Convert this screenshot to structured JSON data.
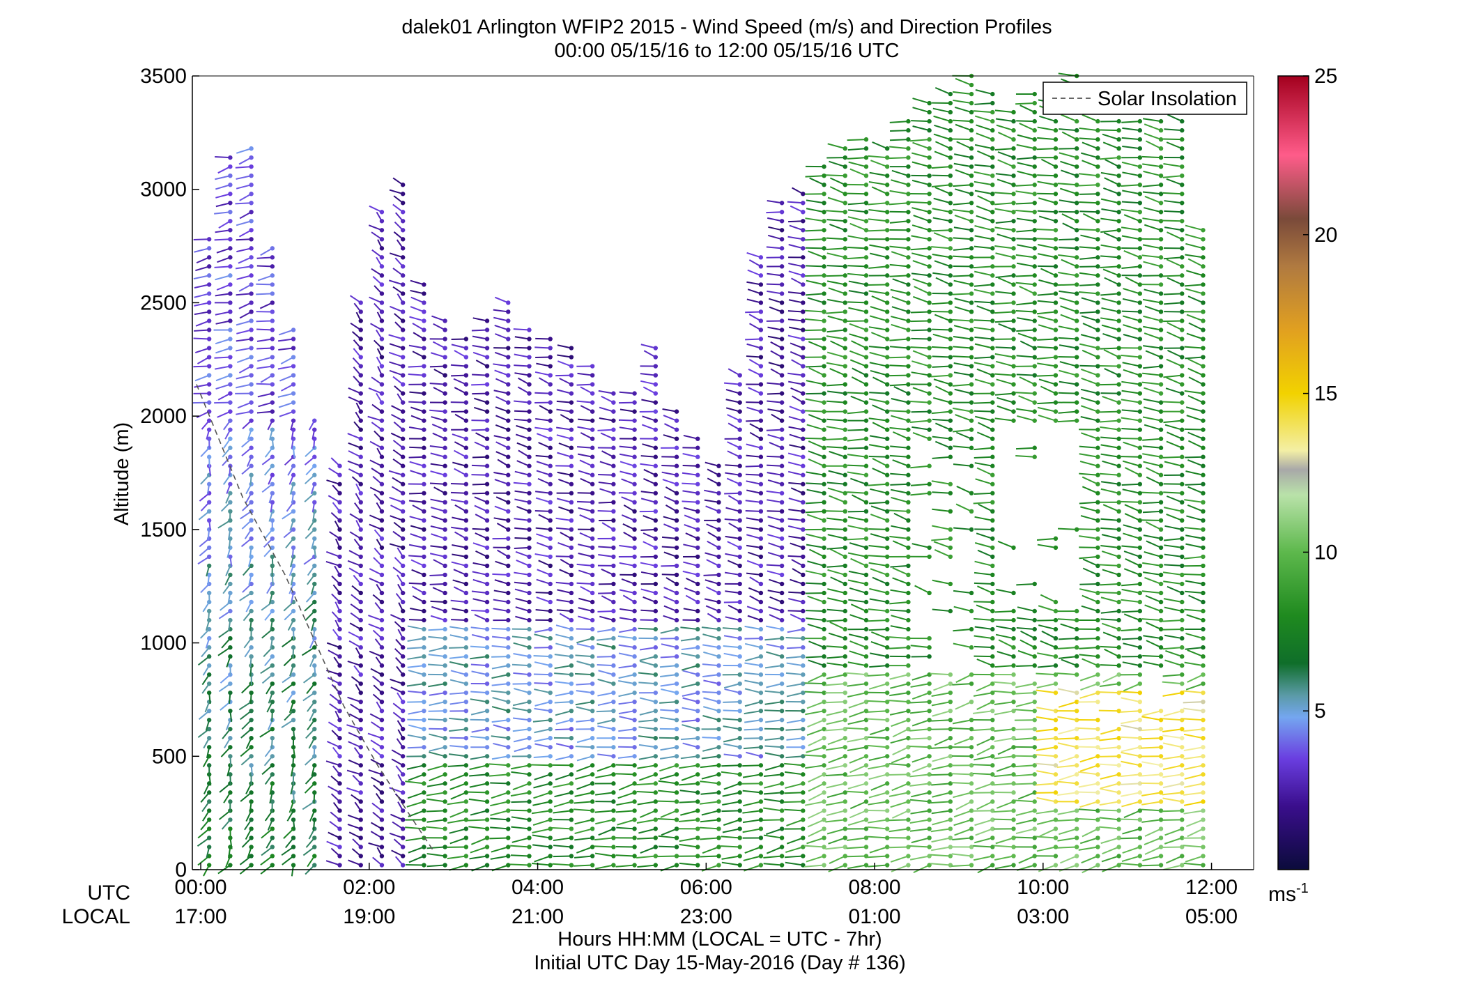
{
  "chart_data": {
    "type": "wind-barb-profile",
    "title_lines": [
      "dalek01 Arlington WFIP2 2015 - Wind Speed (m/s) and Direction Profiles",
      "00:00 05/15/16 to 12:00 05/15/16  UTC"
    ],
    "ylabel": "Altitude (m)",
    "ylim": [
      0,
      3500
    ],
    "y_ticks": [
      0,
      500,
      1000,
      1500,
      2000,
      2500,
      3000,
      3500
    ],
    "y_tick_labels": [
      "0",
      "500",
      "1000",
      "1500",
      "2000",
      "2500",
      "3000",
      "3500"
    ],
    "xlim": [
      -0.1,
      12.5
    ],
    "x_tick_hours": [
      0,
      2,
      4,
      6,
      8,
      10,
      12
    ],
    "x_tick_utc": [
      "00:00",
      "02:00",
      "04:00",
      "06:00",
      "08:00",
      "10:00",
      "12:00"
    ],
    "x_tick_local": [
      "17:00",
      "19:00",
      "21:00",
      "23:00",
      "01:00",
      "03:00",
      "05:00"
    ],
    "row_label_utc": "UTC",
    "row_label_local": "LOCAL",
    "xlabel_lines": [
      "Hours HH:MM  (LOCAL = UTC - 7hr)",
      "Initial UTC Day 15-May-2016 (Day # 136)"
    ],
    "legend": {
      "entry": "Solar Insolation",
      "style": "dashed",
      "placement": "top-right"
    },
    "colorbar": {
      "range": [
        0,
        25
      ],
      "ticks": [
        5,
        10,
        15,
        20,
        25
      ],
      "tick_labels": [
        "5",
        "10",
        "15",
        "20",
        "25"
      ],
      "unit_label": "ms",
      "unit_exponent": "-1",
      "colormap_stops": [
        {
          "v": 0,
          "color": "#0b0b3b"
        },
        {
          "v": 2,
          "color": "#3a0e8c"
        },
        {
          "v": 3.5,
          "color": "#6a3ee0"
        },
        {
          "v": 4.8,
          "color": "#74a6f0"
        },
        {
          "v": 5.5,
          "color": "#5a9aa6"
        },
        {
          "v": 6.5,
          "color": "#0f6e2a"
        },
        {
          "v": 8,
          "color": "#1f8a1f"
        },
        {
          "v": 10,
          "color": "#5db84c"
        },
        {
          "v": 11.8,
          "color": "#b9e2a9"
        },
        {
          "v": 12.6,
          "color": "#a8a8a8"
        },
        {
          "v": 13.2,
          "color": "#f3efa5"
        },
        {
          "v": 15,
          "color": "#f2d200"
        },
        {
          "v": 17,
          "color": "#e1a020"
        },
        {
          "v": 19,
          "color": "#b07a40"
        },
        {
          "v": 20.5,
          "color": "#7a4a3a"
        },
        {
          "v": 22.5,
          "color": "#ff5c8a"
        },
        {
          "v": 25,
          "color": "#a3001e"
        }
      ]
    },
    "solar_insolation_curve": [
      [
        -0.05,
        2140
      ],
      [
        0.5,
        1640
      ],
      [
        1.0,
        1300
      ],
      [
        1.4,
        970
      ],
      [
        1.7,
        720
      ],
      [
        2.1,
        460
      ],
      [
        2.5,
        230
      ],
      [
        2.75,
        90
      ]
    ],
    "profile_times_hours": [
      0.1,
      0.35,
      0.6,
      0.85,
      1.1,
      1.35,
      1.65,
      1.9,
      2.15,
      2.4,
      2.65,
      2.9,
      3.15,
      3.4,
      3.65,
      3.9,
      4.15,
      4.4,
      4.65,
      4.9,
      5.15,
      5.4,
      5.65,
      5.9,
      6.15,
      6.4,
      6.65,
      6.9,
      7.15,
      7.4,
      7.65,
      7.9,
      8.15,
      8.4,
      8.65,
      8.9,
      9.15,
      9.4,
      9.65,
      9.9,
      10.15,
      10.4,
      10.65,
      10.9,
      11.15,
      11.4,
      11.65,
      11.9
    ],
    "profile_top_altitudes_m": [
      2800,
      3150,
      3200,
      2750,
      2400,
      2000,
      1800,
      2500,
      2900,
      3050,
      2600,
      2450,
      2350,
      2450,
      2500,
      2400,
      2350,
      2330,
      2250,
      2100,
      2100,
      2300,
      2050,
      1900,
      1800,
      2200,
      2700,
      2950,
      3000,
      3100,
      3200,
      3250,
      3200,
      3300,
      3400,
      3450,
      3500,
      3450,
      3350,
      3450,
      3400,
      3500,
      3450,
      3350,
      3300,
      3300,
      3350,
      2850
    ],
    "range_gate_spacing_m": 40,
    "lowest_gate_m": 20,
    "regimes": [
      {
        "t_start": 0,
        "t_end": 1.4,
        "z_top": 2000,
        "speed_low": 7,
        "speed_high": 4,
        "dir_deg": 200
      },
      {
        "t_start": 0,
        "t_end": 1.4,
        "z_bottom": 2000,
        "speed": 3.5,
        "dir_deg": 250
      },
      {
        "t_start": 1.4,
        "t_end": 2.5,
        "speed": 2.5,
        "dir_deg": 320
      },
      {
        "t_start": 2.5,
        "t_end": 7.3,
        "z_top": 500,
        "speed": 8,
        "dir_deg": 260
      },
      {
        "t_start": 2.5,
        "t_end": 7.3,
        "z_bottom": 500,
        "z_top": 1100,
        "speed": 5,
        "dir_deg": 270
      },
      {
        "t_start": 2.5,
        "t_end": 7.3,
        "z_bottom": 1100,
        "speed": 2.5,
        "dir_deg": 290
      },
      {
        "t_start": 7.3,
        "t_end": 12,
        "z_top": 900,
        "speed": 10,
        "dir_deg": 255
      },
      {
        "t_start": 7.3,
        "t_end": 12,
        "z_bottom": 900,
        "speed": 8,
        "dir_deg": 285
      },
      {
        "t_start": 10.1,
        "t_end": 12,
        "z_bottom": 300,
        "z_top": 800,
        "speed": 14,
        "dir_deg": 265
      }
    ]
  }
}
